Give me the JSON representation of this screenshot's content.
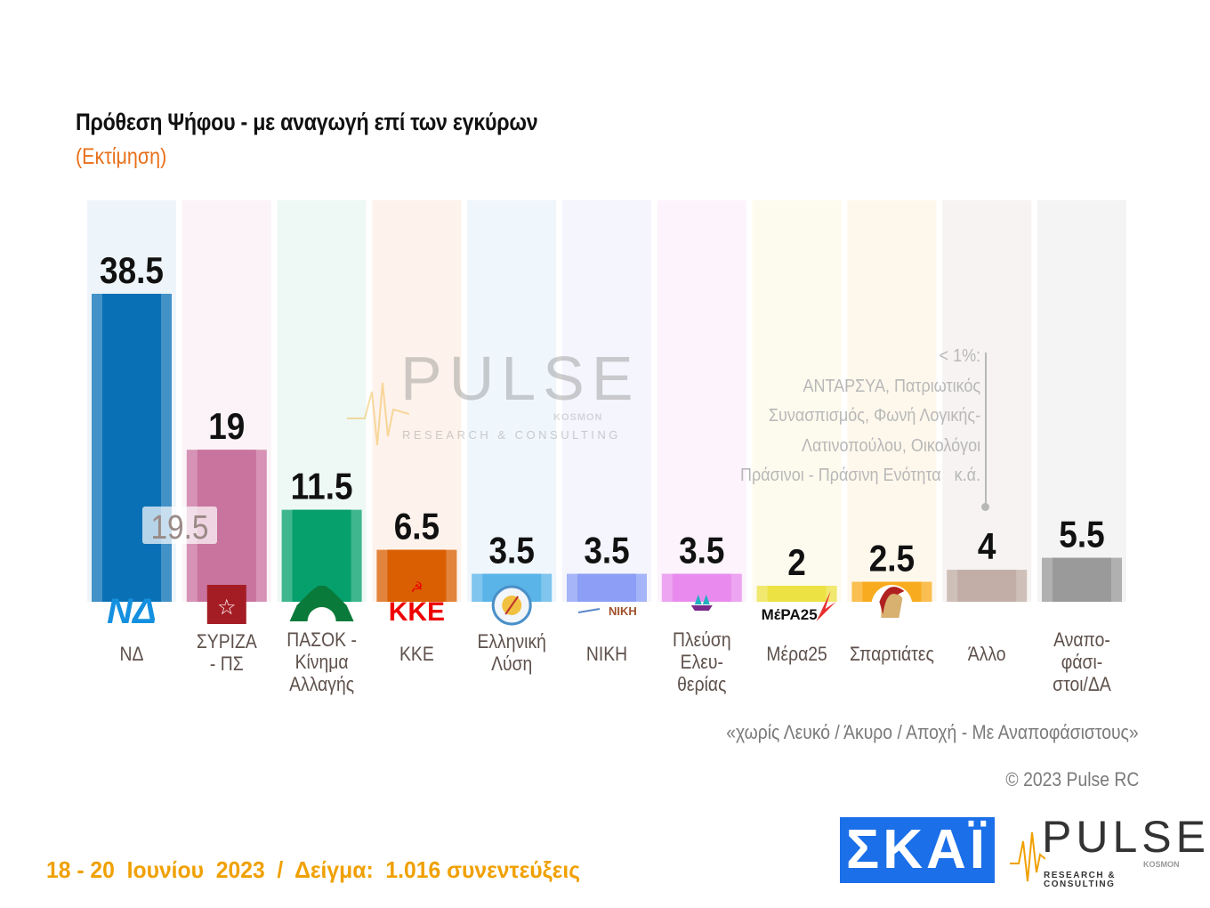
{
  "title": "Πρόθεση Ψήφου - με αναγωγή επί των εγκύρων",
  "subtitle": "(Εκτίμηση)",
  "chart_data": {
    "type": "bar",
    "title": "Πρόθεση Ψήφου - με αναγωγή επί των εγκύρων",
    "subtitle": "(Εκτίμηση)",
    "categories": [
      "ΝΔ",
      "ΣΥΡΙΖΑ - ΠΣ",
      "ΠΑΣΟΚ - Κίνημα Αλλαγής",
      "ΚΚΕ",
      "Ελληνική Λύση",
      "ΝΙΚΗ",
      "Πλεύση Ελευ-θερίας",
      "Μέρα25",
      "Σπαρτιάτες",
      "Άλλο",
      "Αναπο-φάσι-στοι/ΔΑ"
    ],
    "label_lines": [
      [
        "ΝΔ"
      ],
      [
        "ΣΥΡΙΖΑ",
        "- ΠΣ"
      ],
      [
        "ΠΑΣΟΚ -",
        "Κίνημα",
        "Αλλαγής"
      ],
      [
        "ΚΚΕ"
      ],
      [
        "Ελληνική",
        "Λύση"
      ],
      [
        "ΝΙΚΗ"
      ],
      [
        "Πλεύση",
        "Ελευ-",
        "θερίας"
      ],
      [
        "Μέρα25"
      ],
      [
        "Σπαρτιάτες"
      ],
      [
        "Άλλο"
      ],
      [
        "Αναπο-",
        "φάσι-",
        "στοι/ΔΑ"
      ]
    ],
    "values": [
      38.5,
      19,
      11.5,
      6.5,
      3.5,
      3.5,
      3.5,
      2,
      2.5,
      4,
      5.5
    ],
    "value_labels": [
      "38.5",
      "19",
      "11.5",
      "6.5",
      "3.5",
      "3.5",
      "3.5",
      "2",
      "2.5",
      "4",
      "5.5"
    ],
    "colors": [
      "#0a70b5",
      "#c9739f",
      "#06a06c",
      "#d95f02",
      "#5ab4e8",
      "#8c9ef5",
      "#e88aee",
      "#ece244",
      "#f8ab1e",
      "#c2aea6",
      "#9a9a9a"
    ],
    "bg_colors": [
      "#eef5fa",
      "#fbf3f7",
      "#eef8f4",
      "#fdf3ec",
      "#eff6fc",
      "#f4f5fd",
      "#fcf3fc",
      "#fdfbee",
      "#fef8ec",
      "#f6f3f2",
      "#f4f4f4"
    ],
    "logos": [
      "ΝΔ",
      "ΣΥΡΙΖΑ",
      "ΠΑΣΟΚ",
      "ΚΚΕ",
      "Ελληνική Λύση",
      "ΝΙΚΗ",
      "Πλεύση Ελευθερίας",
      "ΜέΡΑ25",
      "Σπαρτιάτες",
      "",
      ""
    ],
    "ghost_label": "19.5",
    "ylim": [
      0,
      40
    ],
    "grid": false,
    "legend": "none"
  },
  "note": {
    "lines": [
      "< 1%:",
      "ΑΝΤΑΡΣΥΑ, Πατριωτικός",
      "Συνασπισμός, Φωνή Λογικής-",
      "Λατινοπούλου, Οικολόγοι",
      "Πράσινοι - Πράσινη Ενότητα   κ.ά."
    ]
  },
  "subnote": "«χωρίς Λευκό / Άκυρο / Αποχή - Με Αναποφάσιστους»",
  "copyright": "© 2023 Pulse RC",
  "fieldwork": "18 - 20  Ιουνίου  2023  /  Δείγμα:  1.016 συνεντεύξεις",
  "watermark": {
    "name": "PULSE",
    "tagline": "RESEARCH & CONSULTING",
    "partner": "KOSMON"
  },
  "logos": {
    "skai": "ΣΚΑΪ",
    "pulse": "PULSE",
    "pulse_tagline": "RESEARCH & CONSULTING",
    "pulse_partner": "KOSMON"
  }
}
